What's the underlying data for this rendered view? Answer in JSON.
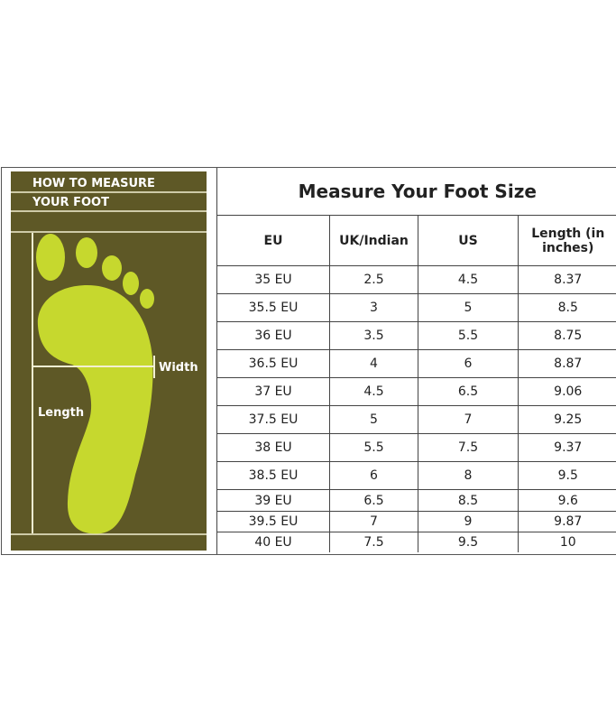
{
  "panel": {
    "heading_line1": "HOW TO MEASURE",
    "heading_line2": "YOUR FOOT",
    "width_label": "Width",
    "length_label": "Length",
    "colors": {
      "background": "#5e5826",
      "foot": "#c6d82e",
      "lines": "#f3f0d2"
    }
  },
  "table": {
    "title": "Measure Your Foot Size",
    "headers": [
      "EU",
      "UK/Indian",
      "US",
      "Length (in inches)"
    ],
    "rows": [
      [
        "35 EU",
        "2.5",
        "4.5",
        "8.37"
      ],
      [
        "35.5 EU",
        "3",
        "5",
        "8.5"
      ],
      [
        "36 EU",
        "3.5",
        "5.5",
        "8.75"
      ],
      [
        "36.5 EU",
        "4",
        "6",
        "8.87"
      ],
      [
        "37 EU",
        "4.5",
        "6.5",
        "9.06"
      ],
      [
        "37.5 EU",
        "5",
        "7",
        "9.25"
      ],
      [
        "38 EU",
        "5.5",
        "7.5",
        "9.37"
      ],
      [
        "38.5 EU",
        "6",
        "8",
        "9.5"
      ],
      [
        "39 EU",
        "6.5",
        "8.5",
        "9.6"
      ],
      [
        "39.5 EU",
        "7",
        "9",
        "9.87"
      ],
      [
        "40 EU",
        "7.5",
        "9.5",
        "10"
      ]
    ]
  }
}
